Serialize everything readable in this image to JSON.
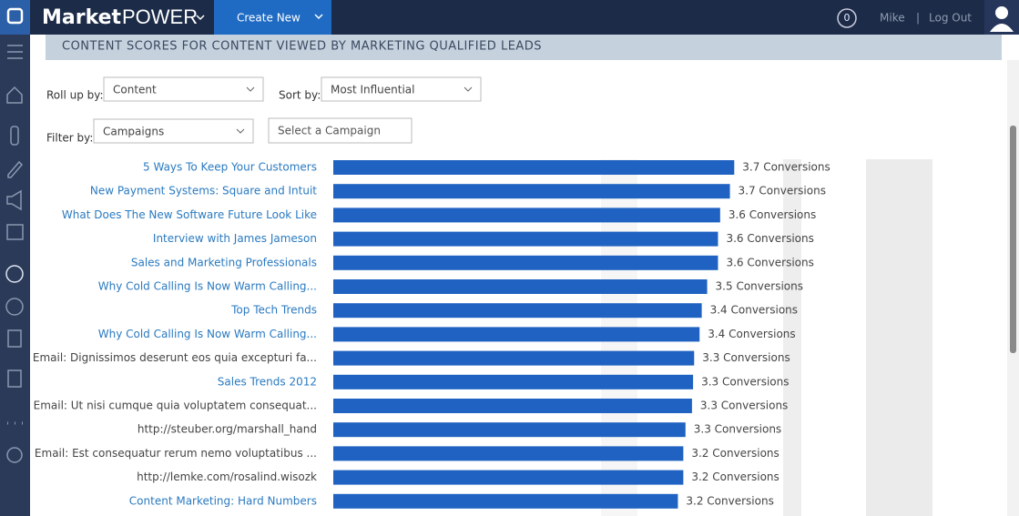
{
  "header": {
    "logo_market": "Market",
    "logo_power": "POWER",
    "create_new": "Create New",
    "notifications": "0",
    "user": "Mike",
    "separator": "|",
    "logout": "Log Out"
  },
  "section_title": "CONTENT SCORES FOR CONTENT VIEWED BY MARKETING QUALIFIED LEADS",
  "controls": {
    "roll_up_label": "Roll up by:",
    "roll_up_value": "Content",
    "sort_label": "Sort by:",
    "sort_value": "Most Influential",
    "filter_label": "Filter by:",
    "filter_value": "Campaigns",
    "campaign_placeholder": "Select a Campaign"
  },
  "chart_data": {
    "type": "bar",
    "orientation": "horizontal",
    "categories": [
      "5 Ways To Keep Your Customers",
      "New Payment Systems: Square and Intuit",
      "What Does The New Software Future Look Like",
      "Interview with James Jameson",
      "Sales and Marketing Professionals",
      "Why Cold Calling Is Now Warm Calling...",
      "Top Tech Trends",
      "Why Cold Calling Is Now Warm Calling...",
      "Email: Dignissimos deserunt eos quia excepturi fa...",
      "Sales Trends 2012",
      "Email: Ut nisi cumque quia voluptatem consequat...",
      "http://steuber.org/marshall_hand",
      "Email: Est consequatur rerum nemo voluptatibus ...",
      "http://lemke.com/rosalind.wisozk",
      "Content Marketing: Hard Numbers"
    ],
    "category_colors": [
      "#2a7ac0",
      "#2a7ac0",
      "#2a7ac0",
      "#2a7ac0",
      "#2a7ac0",
      "#2a7ac0",
      "#2a7ac0",
      "#2a7ac0",
      "#444444",
      "#2a7ac0",
      "#444444",
      "#444444",
      "#444444",
      "#444444",
      "#2a7ac0"
    ],
    "values": [
      3.7,
      3.66,
      3.57,
      3.55,
      3.55,
      3.45,
      3.4,
      3.38,
      3.33,
      3.32,
      3.31,
      3.25,
      3.23,
      3.23,
      3.18
    ],
    "value_labels": [
      "3.7 Conversions",
      "3.7 Conversions",
      "3.6 Conversions",
      "3.6 Conversions",
      "3.6 Conversions",
      "3.5 Conversions",
      "3.4 Conversions",
      "3.4 Conversions",
      "3.3 Conversions",
      "3.3 Conversions",
      "3.3 Conversions",
      "3.3 Conversions",
      "3.2 Conversions",
      "3.2 Conversions",
      "3.2 Conversions"
    ],
    "color": "#1f62c1",
    "xlim": [
      0,
      4
    ]
  }
}
